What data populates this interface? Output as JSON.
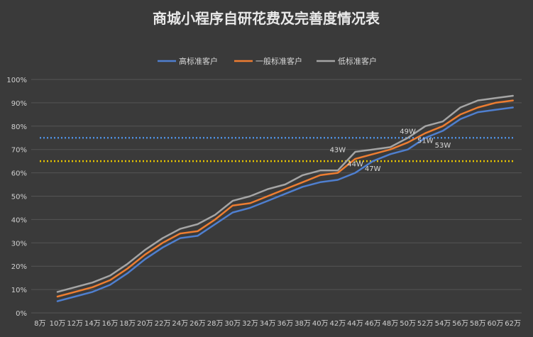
{
  "chart_data": {
    "type": "line",
    "title": "商城小程序自研花费及完善度情况表",
    "legend_position": "top",
    "grid": true,
    "x_categories": [
      "8万",
      "10万",
      "12万",
      "14万",
      "16万",
      "18万",
      "20万",
      "22万",
      "24万",
      "26万",
      "28万",
      "30万",
      "32万",
      "34万",
      "36万",
      "38万",
      "40万",
      "42万",
      "44万",
      "46万",
      "48万",
      "50万",
      "52万",
      "54万",
      "56万",
      "58万",
      "60万",
      "62万"
    ],
    "y_ticks": [
      "0%",
      "10%",
      "20%",
      "30%",
      "40%",
      "50%",
      "60%",
      "70%",
      "80%",
      "90%",
      "100%"
    ],
    "ylim": [
      0,
      100
    ],
    "series": [
      {
        "name": "高标准客户",
        "color": "#4f7fcf",
        "values": [
          null,
          5,
          7,
          9,
          12,
          17,
          23,
          28,
          32,
          33,
          38,
          43,
          45,
          48,
          51,
          54,
          56,
          57,
          60,
          65,
          68,
          70,
          75,
          78,
          83,
          86,
          87,
          88
        ]
      },
      {
        "name": "一般标准客户",
        "color": "#ed7d31",
        "values": [
          null,
          7,
          9,
          11,
          14,
          19,
          25,
          30,
          34,
          35,
          40,
          46,
          47,
          50,
          53,
          56,
          59,
          60,
          66,
          68,
          70,
          73,
          77,
          80,
          85,
          88,
          90,
          91
        ]
      },
      {
        "name": "低标准客户",
        "color": "#a5a5a5",
        "values": [
          null,
          9,
          11,
          13,
          16,
          21,
          27,
          32,
          36,
          38,
          42,
          48,
          50,
          53,
          55,
          59,
          61,
          61,
          69,
          70,
          71,
          75,
          80,
          82,
          88,
          91,
          92,
          93
        ]
      }
    ],
    "reference_lines": [
      {
        "value": 75,
        "color": "#4f8fdf"
      },
      {
        "value": 65,
        "color": "#e8c400"
      }
    ],
    "annotations": [
      {
        "text": "43W",
        "x": "42万",
        "y": 70
      },
      {
        "text": "44W",
        "x": "44万",
        "y": 64
      },
      {
        "text": "47W",
        "x": "46万",
        "y": 62
      },
      {
        "text": "49W",
        "x": "50万",
        "y": 78
      },
      {
        "text": "51W",
        "x": "52万",
        "y": 74
      },
      {
        "text": "53W",
        "x": "54万",
        "y": 72
      }
    ]
  }
}
